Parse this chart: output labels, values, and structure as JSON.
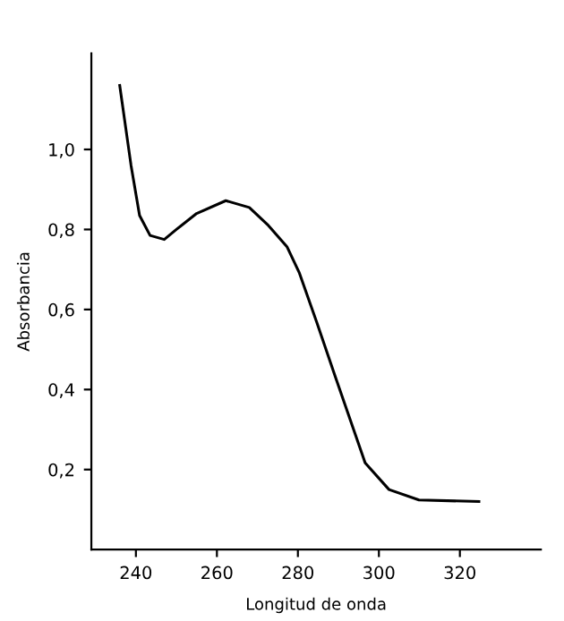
{
  "chart_data": {
    "type": "line",
    "xlabel": "Longitud de onda",
    "ylabel": "Absorbancia",
    "x": [
      236,
      238.8,
      240.9,
      243.5,
      247,
      250,
      255,
      262.2,
      268,
      272.7,
      277.3,
      280.3,
      284.7,
      289.2,
      296.6,
      302.5,
      309.9,
      324.7
    ],
    "series": [
      {
        "color": "#000000",
        "values": [
          1.16,
          0.96,
          0.835,
          0.785,
          0.775,
          0.8,
          0.84,
          0.872,
          0.855,
          0.81,
          0.757,
          0.693,
          0.567,
          0.433,
          0.217,
          0.15,
          0.124,
          0.12
        ]
      }
    ],
    "xlim": [
      229,
      340
    ],
    "ylim": [
      0,
      1.24
    ],
    "xticks": [
      240,
      260,
      280,
      300,
      320
    ],
    "yticks": [
      {
        "value": 0.2,
        "label": "0,2"
      },
      {
        "value": 0.4,
        "label": "0,4"
      },
      {
        "value": 0.6,
        "label": "0,6"
      },
      {
        "value": 0.8,
        "label": "0,8"
      },
      {
        "value": 1.0,
        "label": "1,0"
      }
    ],
    "grid": false,
    "marker": "none",
    "line_style": "solid"
  }
}
